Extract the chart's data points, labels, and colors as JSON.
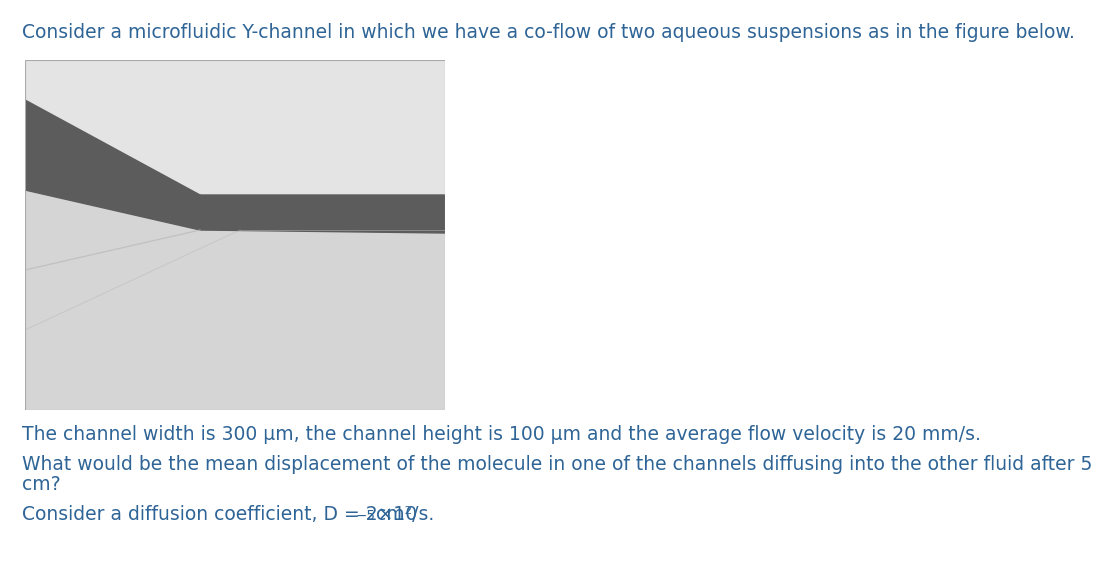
{
  "background_color": "#ffffff",
  "text_color": "#2e6496",
  "line1": "Consider a microfluidic Y-channel in which we have a co-flow of two aqueous suspensions as in the figure below.",
  "line2": "The channel width is 300 μm, the channel height is 100 μm and the average flow velocity is 20 mm/s.",
  "line3a": "What would be the mean displacement of the molecule in one of the channels diffusing into the other fluid after 5",
  "line3b": "cm?",
  "line4_main": "Consider a diffusion coefficient, D = 2×10",
  "line4_sup": "−5",
  "line4_end": " cm²/s.",
  "font_size_main": 13.5,
  "img_bg": "#d8d8d8",
  "dark_band": "#5c5c5c",
  "light_bg": "#e0e0e0",
  "lower_light": "#d0d0d0",
  "subtle_line": "#b8b8b8"
}
